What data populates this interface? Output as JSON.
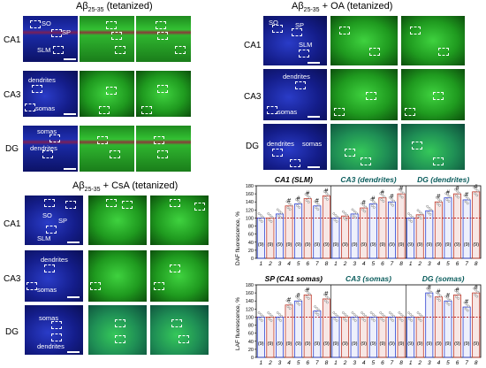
{
  "panel_titles": {
    "top_left": {
      "main": "Aβ",
      "sub": "25-35",
      "rest": " (tetanized)"
    },
    "top_right": {
      "main": "Aβ",
      "sub": "25-35",
      "rest": " + OA (tetanized)"
    },
    "bottom_left": {
      "main": "Aβ",
      "sub": "25-35",
      "rest": " + CsA (tetanized)"
    }
  },
  "row_labels": [
    "CA1",
    "CA3",
    "DG"
  ],
  "tile_labels": {
    "so": "SO",
    "sp": "SP",
    "slm": "SLM",
    "dendrites": "dendrites",
    "somas": "somas"
  },
  "charts": {
    "top": {
      "ylabel": "DAF fluorescence, %",
      "groups": [
        "CA1 (SLM)",
        "CA3 (dendrites)",
        "DG (dendrites)"
      ],
      "y_ticks": [
        "0",
        "20",
        "40",
        "60",
        "80",
        "100",
        "120",
        "140",
        "160",
        "180"
      ]
    },
    "bottom": {
      "ylabel": "LAF fluorescence, %",
      "groups": [
        "SP (CA1 somas)",
        "CA3 (somas)",
        "DG (somas)"
      ],
      "y_ticks": [
        "0",
        "20",
        "40",
        "60",
        "80",
        "100",
        "120",
        "140",
        "160",
        "180"
      ]
    },
    "x_ticks": [
      "1",
      "2",
      "3",
      "4",
      "5",
      "6",
      "7",
      "8"
    ],
    "n_label": "(9)",
    "sig_mark": "#",
    "colors": {
      "blue": "#2b3fcf",
      "red": "#c0392b",
      "ref_line": "#b00000"
    }
  },
  "chart_data": [
    {
      "type": "bar",
      "ylabel": "DAF fluorescence, %",
      "ylim": [
        0,
        180
      ],
      "series": [
        {
          "name": "CA1 (SLM)",
          "categories": [
            "1",
            "2",
            "3",
            "4",
            "5",
            "6",
            "7",
            "8"
          ],
          "values": [
            100,
            100,
            110,
            130,
            135,
            148,
            130,
            155
          ]
        },
        {
          "name": "CA3 (dendrites)",
          "categories": [
            "1",
            "2",
            "3",
            "4",
            "5",
            "6",
            "7",
            "8"
          ],
          "values": [
            100,
            105,
            110,
            125,
            135,
            150,
            140,
            160
          ]
        },
        {
          "name": "DG (dendrites)",
          "categories": [
            "1",
            "2",
            "3",
            "4",
            "5",
            "6",
            "7",
            "8"
          ],
          "values": [
            100,
            108,
            118,
            140,
            150,
            160,
            145,
            165
          ]
        }
      ]
    },
    {
      "type": "bar",
      "ylabel": "LAF fluorescence, %",
      "ylim": [
        0,
        180
      ],
      "series": [
        {
          "name": "SP (CA1 somas)",
          "categories": [
            "1",
            "2",
            "3",
            "4",
            "5",
            "6",
            "7",
            "8"
          ],
          "values": [
            100,
            100,
            100,
            130,
            140,
            155,
            115,
            145
          ]
        },
        {
          "name": "CA3 (somas)",
          "categories": [
            "1",
            "2",
            "3",
            "4",
            "5",
            "6",
            "7",
            "8"
          ],
          "values": [
            100,
            100,
            100,
            100,
            100,
            100,
            100,
            100
          ]
        },
        {
          "name": "DG (somas)",
          "categories": [
            "1",
            "2",
            "3",
            "4",
            "5",
            "6",
            "7",
            "8"
          ],
          "values": [
            100,
            100,
            160,
            150,
            140,
            155,
            125,
            160
          ]
        }
      ]
    }
  ]
}
